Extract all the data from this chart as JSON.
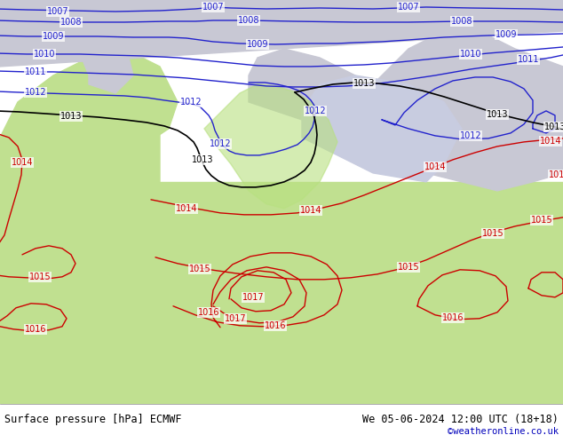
{
  "title_left": "Surface pressure [hPa] ECMWF",
  "title_right": "We 05-06-2024 12:00 UTC (18+18)",
  "credit": "©weatheronline.co.uk",
  "credit_color": "#0000bb",
  "figsize": [
    6.34,
    4.9
  ],
  "dpi": 100,
  "isobar_blue_color": "#2222cc",
  "isobar_black_color": "#000000",
  "isobar_red_color": "#cc0000",
  "sea_color": "#c8cce0",
  "land_green": "#c0e090",
  "land_grey": "#c8c8d4",
  "land_mid_green": "#b0d880",
  "bottom_bar_color": "#d8e8c8",
  "title_fontsize": 8.5,
  "credit_fontsize": 7.5,
  "lw_isobar": 1.0,
  "label_fontsize": 7.0
}
